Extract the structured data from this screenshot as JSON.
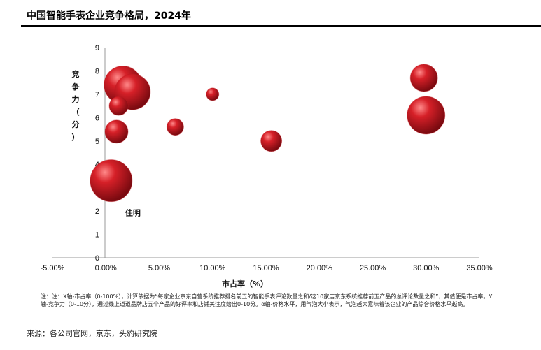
{
  "header": {
    "title": "中国智能手表企业竞争格局，2024年"
  },
  "footer": {
    "note": "注：注：X轴-市占率（0-100%），计算依据为“每家企业京东自营系统推荐排名前五的智能手表评论数量之和/这10家店京东系统推荐前五产品的总评论数量之和”，其值便是市占率。Y轴-竞争力（0-10分），通过线上道道品牌店五个产品的好评率和店铺关注度给出0-10分。α轴-价格水平，用气泡大小表示，气泡越大意味着该企业的产品综合价格水平越高。",
    "source": "来源：各公司官网，京东，头豹研究院"
  },
  "chart_data": {
    "type": "scatter",
    "title": "中国智能手表企业竞争格局，2024年",
    "xlabel": "市占率（%）",
    "ylabel": "竞争力（分）",
    "xlim": [
      -0.05,
      0.35
    ],
    "ylim": [
      0,
      9
    ],
    "x_ticks": [
      "-5.00%",
      "0.00%",
      "5.00%",
      "10.00%",
      "15.00%",
      "20.00%",
      "25.00%",
      "30.00%",
      "35.00%"
    ],
    "y_ticks": [
      "0",
      "1",
      "2",
      "3",
      "4",
      "5",
      "6",
      "7",
      "8",
      "9"
    ],
    "grid": false,
    "legend": "none",
    "bubble_color": "#c0161e",
    "points": [
      {
        "x": 0.016,
        "y": 7.4,
        "size": 0.9,
        "label": ""
      },
      {
        "x": 0.025,
        "y": 7.1,
        "size": 0.85,
        "label": ""
      },
      {
        "x": 0.012,
        "y": 6.5,
        "size": 0.45,
        "label": ""
      },
      {
        "x": 0.01,
        "y": 5.4,
        "size": 0.55,
        "label": ""
      },
      {
        "x": 0.065,
        "y": 5.6,
        "size": 0.4,
        "label": ""
      },
      {
        "x": 0.1,
        "y": 7.0,
        "size": 0.3,
        "label": ""
      },
      {
        "x": 0.155,
        "y": 5.0,
        "size": 0.5,
        "label": ""
      },
      {
        "x": 0.298,
        "y": 7.7,
        "size": 0.65,
        "label": ""
      },
      {
        "x": 0.3,
        "y": 6.1,
        "size": 0.9,
        "label": ""
      },
      {
        "x": 0.005,
        "y": 3.3,
        "size": 1.0,
        "label": "佳明"
      }
    ]
  }
}
